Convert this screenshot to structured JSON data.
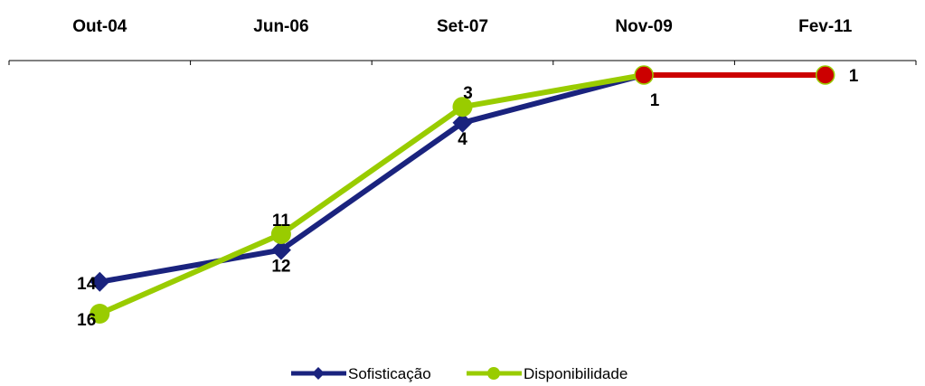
{
  "chart_data": {
    "type": "line",
    "categories": [
      "Out-04",
      "Jun-06",
      "Set-07",
      "Nov-09",
      "Fev-11"
    ],
    "y_axis": {
      "reversed": true,
      "range": [
        1,
        16
      ],
      "shown": false
    },
    "grid": false,
    "legend_position": "bottom",
    "series": [
      {
        "name": "Sofisticação",
        "values": [
          14,
          12,
          4,
          1,
          1
        ],
        "color": "#1a237e",
        "marker": "diamond",
        "labels": [
          "14",
          "12",
          "4",
          "1",
          ""
        ]
      },
      {
        "name": "Disponibilidade",
        "values": [
          16,
          11,
          3,
          1,
          1
        ],
        "color": "#99cc00",
        "marker": "circle",
        "labels": [
          "16",
          "11",
          "3",
          "",
          "1"
        ]
      }
    ],
    "highlight": {
      "color": "#cc0000",
      "segment_categories": [
        "Nov-09",
        "Fev-11"
      ]
    }
  }
}
